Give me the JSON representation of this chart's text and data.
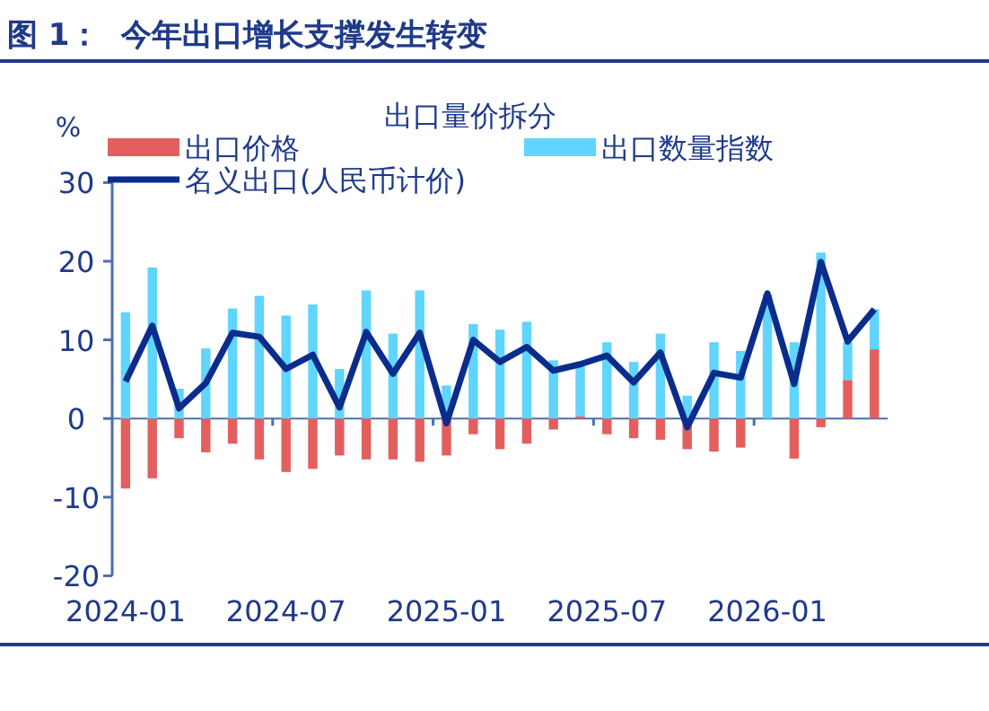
{
  "chart_data": {
    "type": "bar",
    "title": "图 1：  今年出口增长支撑发生转变",
    "subtitle": "出口量价拆分",
    "ylabel": "%",
    "categories": [
      "2024-01",
      null,
      null,
      null,
      null,
      null,
      "2024-07",
      null,
      null,
      null,
      null,
      null,
      "2025-01",
      null,
      null,
      null,
      null,
      null,
      "2025-07",
      null,
      null,
      null,
      null,
      null,
      "2026-01",
      null,
      null,
      null,
      null
    ],
    "stacked": true,
    "series": [
      {
        "name": "出口价格",
        "color": "#e35f5f",
        "values": [
          -8.9,
          -7.6,
          -2.5,
          -4.3,
          -3.2,
          -5.2,
          -6.8,
          -6.4,
          -4.7,
          -5.2,
          -5.2,
          -5.5,
          -4.7,
          -2.0,
          -3.9,
          -3.2,
          -1.4,
          0.3,
          -2.0,
          -2.5,
          -2.7,
          -3.9,
          -4.2,
          -3.7,
          null,
          -5.1,
          -1.1,
          4.9,
          8.8
        ]
      },
      {
        "name": "出口数量指数",
        "color": "#5fd5ff",
        "values": [
          13.5,
          19.2,
          3.8,
          8.9,
          14.0,
          15.6,
          13.1,
          14.5,
          6.3,
          16.3,
          10.8,
          16.3,
          4.2,
          12.0,
          11.3,
          12.3,
          7.4,
          6.4,
          9.7,
          7.2,
          10.8,
          2.9,
          9.7,
          8.6,
          15.8,
          9.7,
          21.1,
          4.8,
          5.1
        ]
      },
      {
        "name": "名义出口(人民币计价)",
        "type": "line",
        "color": "#0a2d8c",
        "values": [
          4.7,
          11.8,
          1.3,
          4.5,
          10.9,
          10.4,
          6.3,
          8.1,
          1.4,
          11.0,
          5.7,
          10.9,
          -0.6,
          10.0,
          7.2,
          9.1,
          6.1,
          6.9,
          8.0,
          4.6,
          8.4,
          -1.1,
          5.8,
          5.2,
          15.9,
          4.4,
          19.9,
          9.8,
          13.9
        ]
      }
    ],
    "ylim": [
      -20,
      30
    ],
    "yticks": [
      -20,
      -10,
      0,
      10,
      20,
      30
    ],
    "ref_lines": [
      {
        "axis": "y",
        "value": 0,
        "color": "#4a6fb0"
      }
    ],
    "grid": false,
    "legend": "top",
    "marker": "none",
    "line_style": "solid"
  }
}
